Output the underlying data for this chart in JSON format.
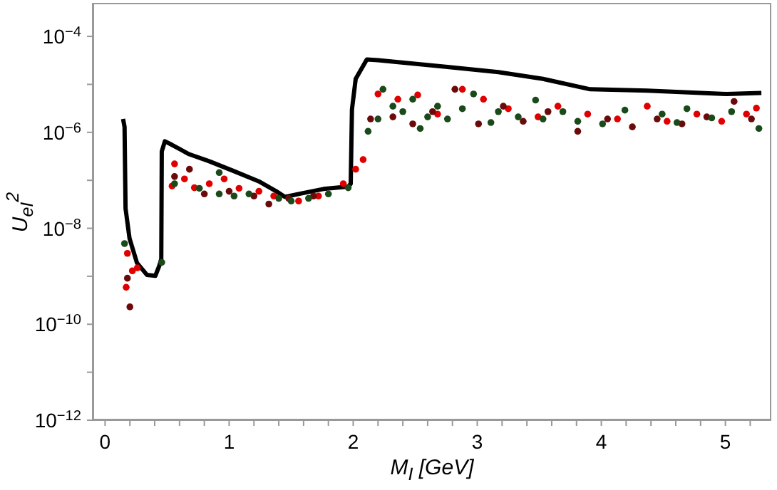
{
  "chart_data": {
    "type": "scatter",
    "xlabel": "M$_{I}$ [GeV]",
    "ylabel": "U$_{eI}$$^{2}$",
    "log": "y",
    "grid": false,
    "legend": false,
    "xlim": [
      -0.1,
      5.37
    ],
    "xticks": [
      0,
      {
        "value": 0.2,
        "label": null
      },
      {
        "value": 0.4,
        "label": null
      },
      {
        "value": 0.6,
        "label": null
      },
      {
        "value": 0.8,
        "label": null
      },
      1,
      {
        "value": 1.2,
        "label": null
      },
      {
        "value": 1.4,
        "label": null
      },
      {
        "value": 1.6,
        "label": null
      },
      {
        "value": 1.8,
        "label": null
      },
      2,
      {
        "value": 2.2,
        "label": null
      },
      {
        "value": 2.4,
        "label": null
      },
      {
        "value": 2.6,
        "label": null
      },
      {
        "value": 2.8,
        "label": null
      },
      3,
      {
        "value": 3.2,
        "label": null
      },
      {
        "value": 3.4,
        "label": null
      },
      {
        "value": 3.6,
        "label": null
      },
      {
        "value": 3.8,
        "label": null
      },
      4,
      {
        "value": 4.2,
        "label": null
      },
      {
        "value": 4.4,
        "label": null
      },
      {
        "value": 4.6,
        "label": null
      },
      {
        "value": 4.8,
        "label": null
      },
      5,
      {
        "value": 5.2,
        "label": null
      }
    ],
    "ylim": [
      1e-12,
      0.0005
    ],
    "yticks": [
      {
        "value": 1e-12,
        "label": "10$^{−12}$"
      },
      {
        "value": 1e-11,
        "label": null
      },
      {
        "value": 1e-10,
        "label": "10$^{−10}$"
      },
      {
        "value": 1e-09,
        "label": null
      },
      {
        "value": 1e-08,
        "label": "10$^{−8}$"
      },
      {
        "value": 1e-07,
        "label": null
      },
      {
        "value": 1e-06,
        "label": "10$^{−6}$"
      },
      {
        "value": 1e-05,
        "label": null
      },
      {
        "value": 0.0001,
        "label": "10$^{−4}$"
      }
    ],
    "series": [
      {
        "marker": "circle",
        "color": "#e00000",
        "x": [
          0.18,
          0.17,
          0.22,
          0.26,
          0.56,
          0.54,
          0.64,
          0.72,
          0.84,
          0.96,
          1.08,
          1.24,
          1.36,
          1.56,
          1.72,
          1.92,
          2.02,
          2.08,
          2.2,
          2.36,
          2.52,
          2.68,
          2.88,
          3.05,
          3.25,
          3.49,
          3.65,
          3.89,
          4.13,
          4.37,
          4.53,
          4.77,
          4.97,
          5.17,
          5.25
        ],
        "values": [
          3e-09,
          5.9e-10,
          1.3e-09,
          1.5e-09,
          2.2e-07,
          7.6e-08,
          1.07e-07,
          7e-08,
          8.5e-08,
          1.07e-07,
          6.8e-08,
          5.9e-08,
          4.7e-08,
          3.7e-08,
          4.7e-08,
          8.5e-08,
          1.7e-07,
          2.7e-07,
          6.3e-06,
          4.9e-06,
          6e-06,
          2.4e-06,
          7.9e-06,
          4.9e-06,
          3.1e-06,
          2.1e-06,
          3.5e-06,
          2.4e-06,
          1.9e-06,
          3.5e-06,
          1.7e-06,
          2.4e-06,
          1.7e-06,
          2.4e-06,
          3.2e-06
        ]
      },
      {
        "marker": "circle",
        "color": "#6b0a0a",
        "x": [
          0.2,
          0.18,
          0.56,
          0.68,
          0.8,
          1.0,
          1.2,
          1.32,
          1.48,
          1.68,
          2.14,
          2.32,
          2.48,
          2.64,
          2.82,
          3.01,
          3.21,
          3.37,
          3.57,
          3.81,
          4.05,
          4.25,
          4.45,
          4.65,
          4.85,
          5.07,
          5.21
        ],
        "values": [
          2.3e-10,
          9.1e-10,
          1.2e-07,
          1.7e-07,
          5.2e-08,
          5.9e-08,
          4.7e-08,
          3.2e-08,
          4.2e-08,
          4.7e-08,
          1.9e-06,
          2.1e-06,
          1.5e-06,
          2.7e-06,
          7.9e-06,
          1.5e-06,
          3.5e-06,
          1.7e-06,
          2.7e-06,
          1.05e-06,
          1.9e-06,
          1.3e-06,
          1.9e-06,
          1.5e-06,
          2.1e-06,
          4.4e-06,
          1.9e-06
        ]
      },
      {
        "marker": "circle",
        "color": "#1a4a1a",
        "x": [
          0.157,
          0.457,
          0.56,
          0.76,
          0.92,
          0.92,
          1.04,
          1.16,
          1.4,
          1.5,
          1.64,
          1.8,
          1.96,
          2.12,
          2.24,
          2.2,
          2.32,
          2.4,
          2.48,
          2.54,
          2.6,
          2.68,
          2.76,
          2.88,
          2.97,
          3.11,
          3.17,
          3.33,
          3.47,
          3.53,
          3.69,
          3.81,
          4.01,
          4.19,
          4.49,
          4.61,
          4.69,
          4.89,
          5.05,
          5.27
        ],
        "values": [
          4.8e-09,
          1.95e-09,
          8.5e-08,
          6.8e-08,
          1.45e-07,
          5.2e-08,
          4.7e-08,
          5.2e-08,
          4.2e-08,
          3.7e-08,
          4.2e-08,
          5.2e-08,
          7e-08,
          1.05e-06,
          7.9e-06,
          1.9e-06,
          3.5e-06,
          2.7e-06,
          4.9e-06,
          1.2e-06,
          2.1e-06,
          3.5e-06,
          1.9e-06,
          3.1e-06,
          6.3e-06,
          1.6e-06,
          2.7e-06,
          2.1e-06,
          4.7e-06,
          1.9e-06,
          2.7e-06,
          1.7e-06,
          1.5e-06,
          2.9e-06,
          2.4e-06,
          1.6e-06,
          3.1e-06,
          2e-06,
          2.7e-06,
          1.2e-06
        ]
      },
      {
        "type": "line",
        "marker": "none",
        "line_style": "solid",
        "color": "#000000",
        "x": [
          0.145,
          0.157,
          0.165,
          0.197,
          0.257,
          0.337,
          0.405,
          0.437,
          0.453,
          0.457,
          0.482,
          0.538,
          0.678,
          0.839,
          1.04,
          1.24,
          1.38,
          1.45,
          1.56,
          1.76,
          1.96,
          1.98,
          1.99,
          2.02,
          2.11,
          2.2,
          2.76,
          3.17,
          3.53,
          3.91,
          4.37,
          5.01,
          5.29
        ],
        "values": [
          1.9e-06,
          1.3e-06,
          2.6e-08,
          6.2e-09,
          1.9e-09,
          1.07e-09,
          1.02e-09,
          1.66e-09,
          2.3e-09,
          4e-07,
          6.5e-07,
          5.5e-07,
          3.5e-07,
          2.5e-07,
          1.55e-07,
          9.5e-08,
          5.9e-08,
          4.5e-08,
          5.2e-08,
          6.6e-08,
          7.4e-08,
          8.5e-08,
          3e-06,
          1.3e-05,
          3.3e-05,
          3.2e-05,
          2.3e-05,
          1.8e-05,
          1.3e-05,
          7.9e-06,
          7.4e-06,
          6.3e-06,
          6.6e-06
        ]
      }
    ]
  }
}
